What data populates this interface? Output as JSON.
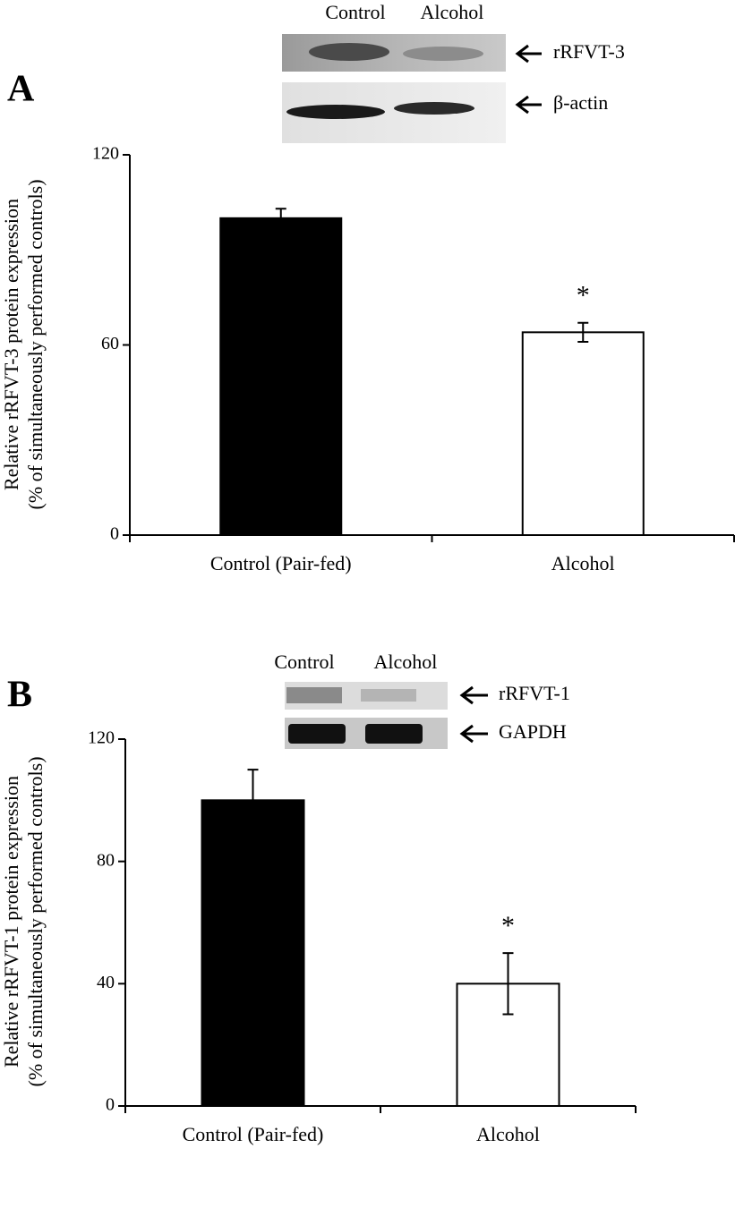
{
  "chart_data": [
    {
      "type": "bar",
      "panel": "A",
      "blot": {
        "lanes": [
          "Control",
          "Alcohol"
        ],
        "bands": [
          "rRFVT-3",
          "β-actin"
        ]
      },
      "ylabel": [
        "Relative rRFVT-3 protein expression",
        "(% of simultaneously performed controls)"
      ],
      "categories": [
        "Control (Pair-fed)",
        "Alcohol"
      ],
      "values": [
        100,
        64
      ],
      "errors": [
        3,
        3
      ],
      "colors": [
        "#000000",
        "#ffffff"
      ],
      "significance": [
        null,
        "*"
      ],
      "ylim": [
        0,
        120
      ],
      "yticks": [
        0,
        60,
        120
      ]
    },
    {
      "type": "bar",
      "panel": "B",
      "blot": {
        "lanes": [
          "Control",
          "Alcohol"
        ],
        "bands": [
          "rRFVT-1",
          "GAPDH"
        ]
      },
      "ylabel": [
        "Relative rRFVT-1 protein expression",
        "(% of simultaneously performed controls)"
      ],
      "categories": [
        "Control (Pair-fed)",
        "Alcohol"
      ],
      "values": [
        100,
        40
      ],
      "errors": [
        10,
        10
      ],
      "colors": [
        "#000000",
        "#ffffff"
      ],
      "significance": [
        null,
        "*"
      ],
      "ylim": [
        0,
        120
      ],
      "yticks": [
        0,
        40,
        80,
        120
      ]
    }
  ]
}
